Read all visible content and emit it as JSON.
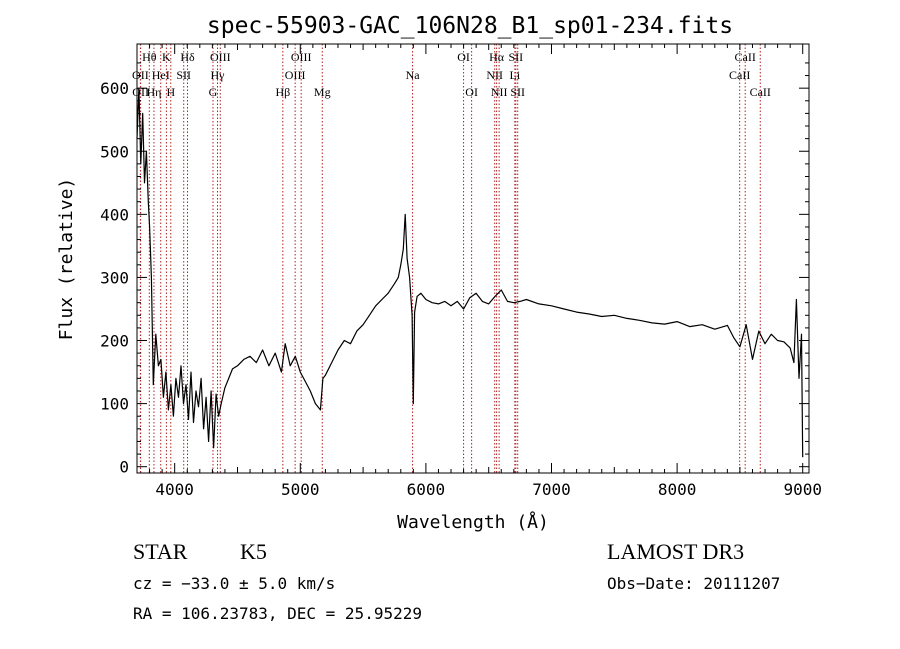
{
  "chart_data": {
    "type": "line",
    "title": "spec-55903-GAC_106N28_B1_sp01-234.fits",
    "xlabel": "Wavelength (Å)",
    "ylabel": "Flux (relative)",
    "xlim": [
      3700,
      9050
    ],
    "ylim": [
      -10,
      670
    ],
    "xticks": [
      4000,
      5000,
      6000,
      7000,
      8000,
      9000
    ],
    "yticks": [
      0,
      100,
      200,
      300,
      400,
      500,
      600
    ],
    "lines": [
      {
        "name": "OII",
        "wave": 3727,
        "row": 1
      },
      {
        "name": "OII",
        "wave": 3729,
        "row": 2
      },
      {
        "name": "Hθ",
        "wave": 3798,
        "row": 0
      },
      {
        "name": "Hη",
        "wave": 3835,
        "row": 2
      },
      {
        "name": "HeI",
        "wave": 3889,
        "row": 1
      },
      {
        "name": "K",
        "wave": 3934,
        "row": 0
      },
      {
        "name": "H",
        "wave": 3969,
        "row": 2
      },
      {
        "name": "SII",
        "wave": 4072,
        "row": 1
      },
      {
        "name": "Hδ",
        "wave": 4102,
        "row": 0
      },
      {
        "name": "G",
        "wave": 4305,
        "row": 2
      },
      {
        "name": "Hγ",
        "wave": 4341,
        "row": 1
      },
      {
        "name": "OIII",
        "wave": 4363,
        "row": 0
      },
      {
        "name": "Hβ",
        "wave": 4861,
        "row": 2
      },
      {
        "name": "OIII",
        "wave": 4959,
        "row": 1
      },
      {
        "name": "OIII",
        "wave": 5007,
        "row": 0
      },
      {
        "name": "Mg",
        "wave": 5175,
        "row": 2
      },
      {
        "name": "Na",
        "wave": 5894,
        "row": 1
      },
      {
        "name": "OI",
        "wave": 6300,
        "row": 0
      },
      {
        "name": "OI",
        "wave": 6364,
        "row": 2
      },
      {
        "name": "NII",
        "wave": 6548,
        "row": 1
      },
      {
        "name": "Hα",
        "wave": 6563,
        "row": 0
      },
      {
        "name": "NII",
        "wave": 6583,
        "row": 2
      },
      {
        "name": "SII",
        "wave": 6716,
        "row": 0
      },
      {
        "name": "Li",
        "wave": 6708,
        "row": 1
      },
      {
        "name": "SII",
        "wave": 6731,
        "row": 2
      },
      {
        "name": "CaII",
        "wave": 8498,
        "row": 1
      },
      {
        "name": "CaII",
        "wave": 8542,
        "row": 0
      },
      {
        "name": "CaII",
        "wave": 8662,
        "row": 2
      }
    ],
    "series": [
      {
        "name": "flux",
        "x": [
          3700,
          3715,
          3730,
          3745,
          3760,
          3775,
          3790,
          3800,
          3815,
          3830,
          3850,
          3870,
          3890,
          3910,
          3930,
          3950,
          3970,
          3990,
          4010,
          4030,
          4050,
          4070,
          4090,
          4110,
          4130,
          4150,
          4170,
          4190,
          4210,
          4230,
          4250,
          4270,
          4290,
          4310,
          4330,
          4350,
          4370,
          4400,
          4430,
          4460,
          4500,
          4550,
          4600,
          4650,
          4700,
          4750,
          4800,
          4850,
          4880,
          4920,
          4960,
          5000,
          5040,
          5080,
          5120,
          5160,
          5180,
          5200,
          5250,
          5300,
          5350,
          5400,
          5450,
          5500,
          5550,
          5600,
          5650,
          5700,
          5750,
          5780,
          5800,
          5820,
          5835,
          5850,
          5870,
          5890,
          5900,
          5910,
          5930,
          5960,
          6000,
          6050,
          6100,
          6150,
          6200,
          6250,
          6300,
          6350,
          6400,
          6450,
          6500,
          6550,
          6600,
          6650,
          6700,
          6750,
          6800,
          6900,
          7000,
          7100,
          7200,
          7300,
          7400,
          7500,
          7600,
          7700,
          7800,
          7900,
          8000,
          8100,
          8200,
          8300,
          8400,
          8450,
          8500,
          8550,
          8600,
          8650,
          8700,
          8750,
          8800,
          8850,
          8900,
          8930,
          8950,
          8970,
          8990,
          9000
        ],
        "values": [
          520,
          600,
          480,
          560,
          450,
          500,
          420,
          380,
          300,
          130,
          210,
          160,
          170,
          110,
          150,
          90,
          130,
          80,
          140,
          110,
          160,
          100,
          130,
          75,
          150,
          70,
          120,
          95,
          140,
          60,
          110,
          40,
          120,
          30,
          115,
          80,
          100,
          125,
          140,
          155,
          160,
          170,
          175,
          165,
          185,
          160,
          180,
          150,
          195,
          160,
          175,
          150,
          135,
          120,
          100,
          90,
          140,
          145,
          165,
          185,
          200,
          195,
          215,
          225,
          240,
          255,
          265,
          275,
          290,
          300,
          320,
          345,
          400,
          330,
          300,
          240,
          100,
          245,
          270,
          275,
          265,
          260,
          258,
          262,
          255,
          262,
          250,
          268,
          275,
          262,
          258,
          270,
          280,
          262,
          260,
          262,
          265,
          258,
          255,
          250,
          245,
          242,
          238,
          240,
          235,
          232,
          228,
          226,
          230,
          222,
          225,
          218,
          224,
          205,
          190,
          225,
          170,
          215,
          195,
          210,
          200,
          198,
          188,
          165,
          265,
          140,
          210,
          15
        ]
      }
    ]
  },
  "info": {
    "object_class": "STAR",
    "subclass": "K5",
    "survey": "LAMOST DR3",
    "cz": "cz = −33.0 ± 5.0 km/s",
    "obs_date": "Obs−Date: 20111207",
    "coords": "RA = 106.23783, DEC =  25.95229"
  },
  "colors": {
    "spectrum": "#000000",
    "lines": "#b22222",
    "axes": "#000000",
    "background": "#ffffff"
  }
}
